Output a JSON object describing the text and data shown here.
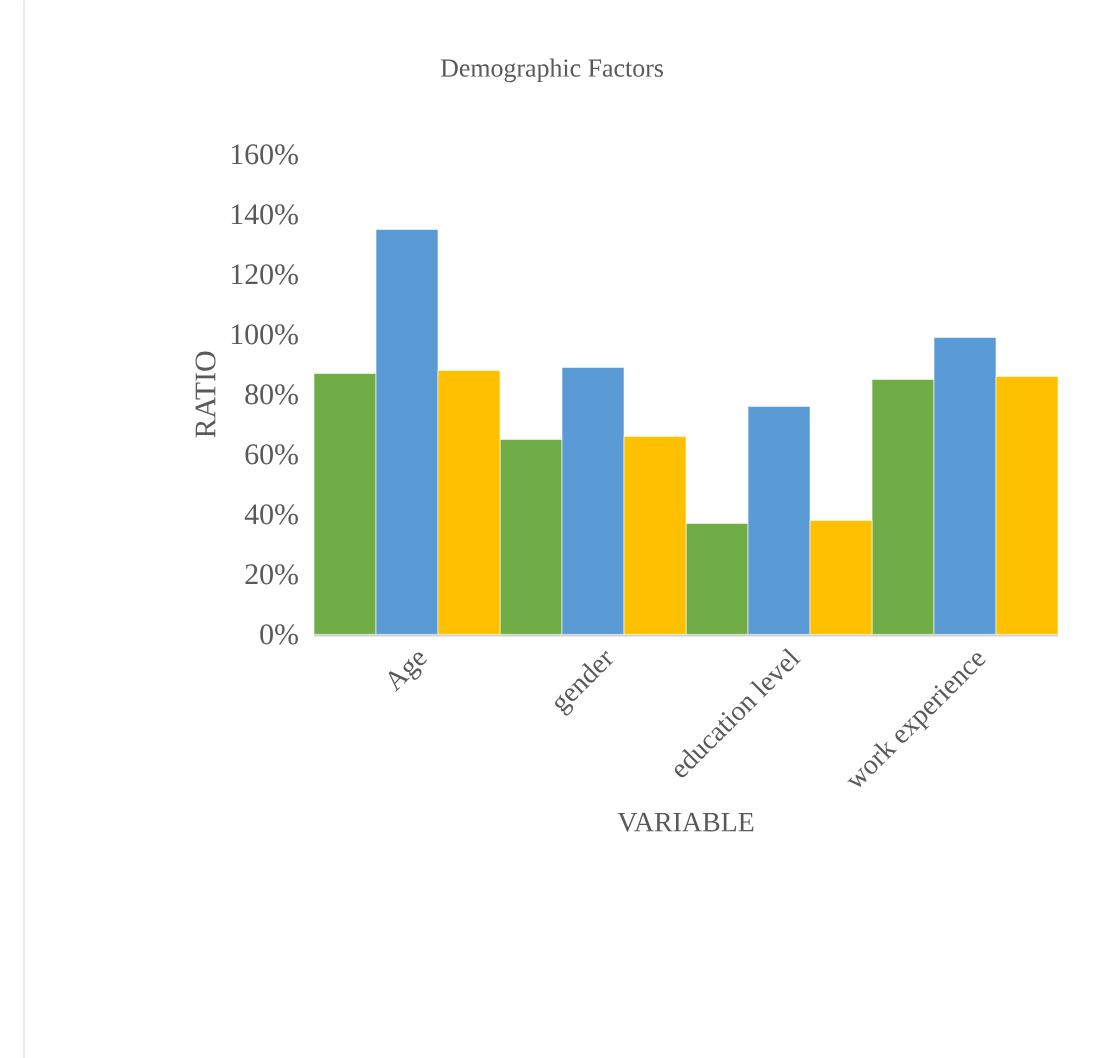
{
  "chart_data": {
    "type": "bar",
    "title": "Demographic Factors",
    "xlabel": "VARIABLE",
    "ylabel": "RATIO",
    "categories": [
      "Age",
      "gender",
      "education level",
      "work experience"
    ],
    "series": [
      {
        "color": "#70ad47",
        "values": [
          87,
          65,
          37,
          85
        ]
      },
      {
        "color": "#5b9bd5",
        "values": [
          135,
          89,
          76,
          99
        ]
      },
      {
        "color": "#ffc000",
        "values": [
          88,
          66,
          38,
          86
        ]
      }
    ],
    "ylim": [
      0,
      160
    ],
    "yticks": [
      {
        "value": 0,
        "label": "0%"
      },
      {
        "value": 20,
        "label": "20%"
      },
      {
        "value": 40,
        "label": "40%"
      },
      {
        "value": 60,
        "label": "60%"
      },
      {
        "value": 80,
        "label": "80%"
      },
      {
        "value": 100,
        "label": "100%"
      },
      {
        "value": 120,
        "label": "120%"
      },
      {
        "value": 140,
        "label": "140%"
      },
      {
        "value": 160,
        "label": "160%"
      }
    ],
    "line_style": "solid"
  }
}
